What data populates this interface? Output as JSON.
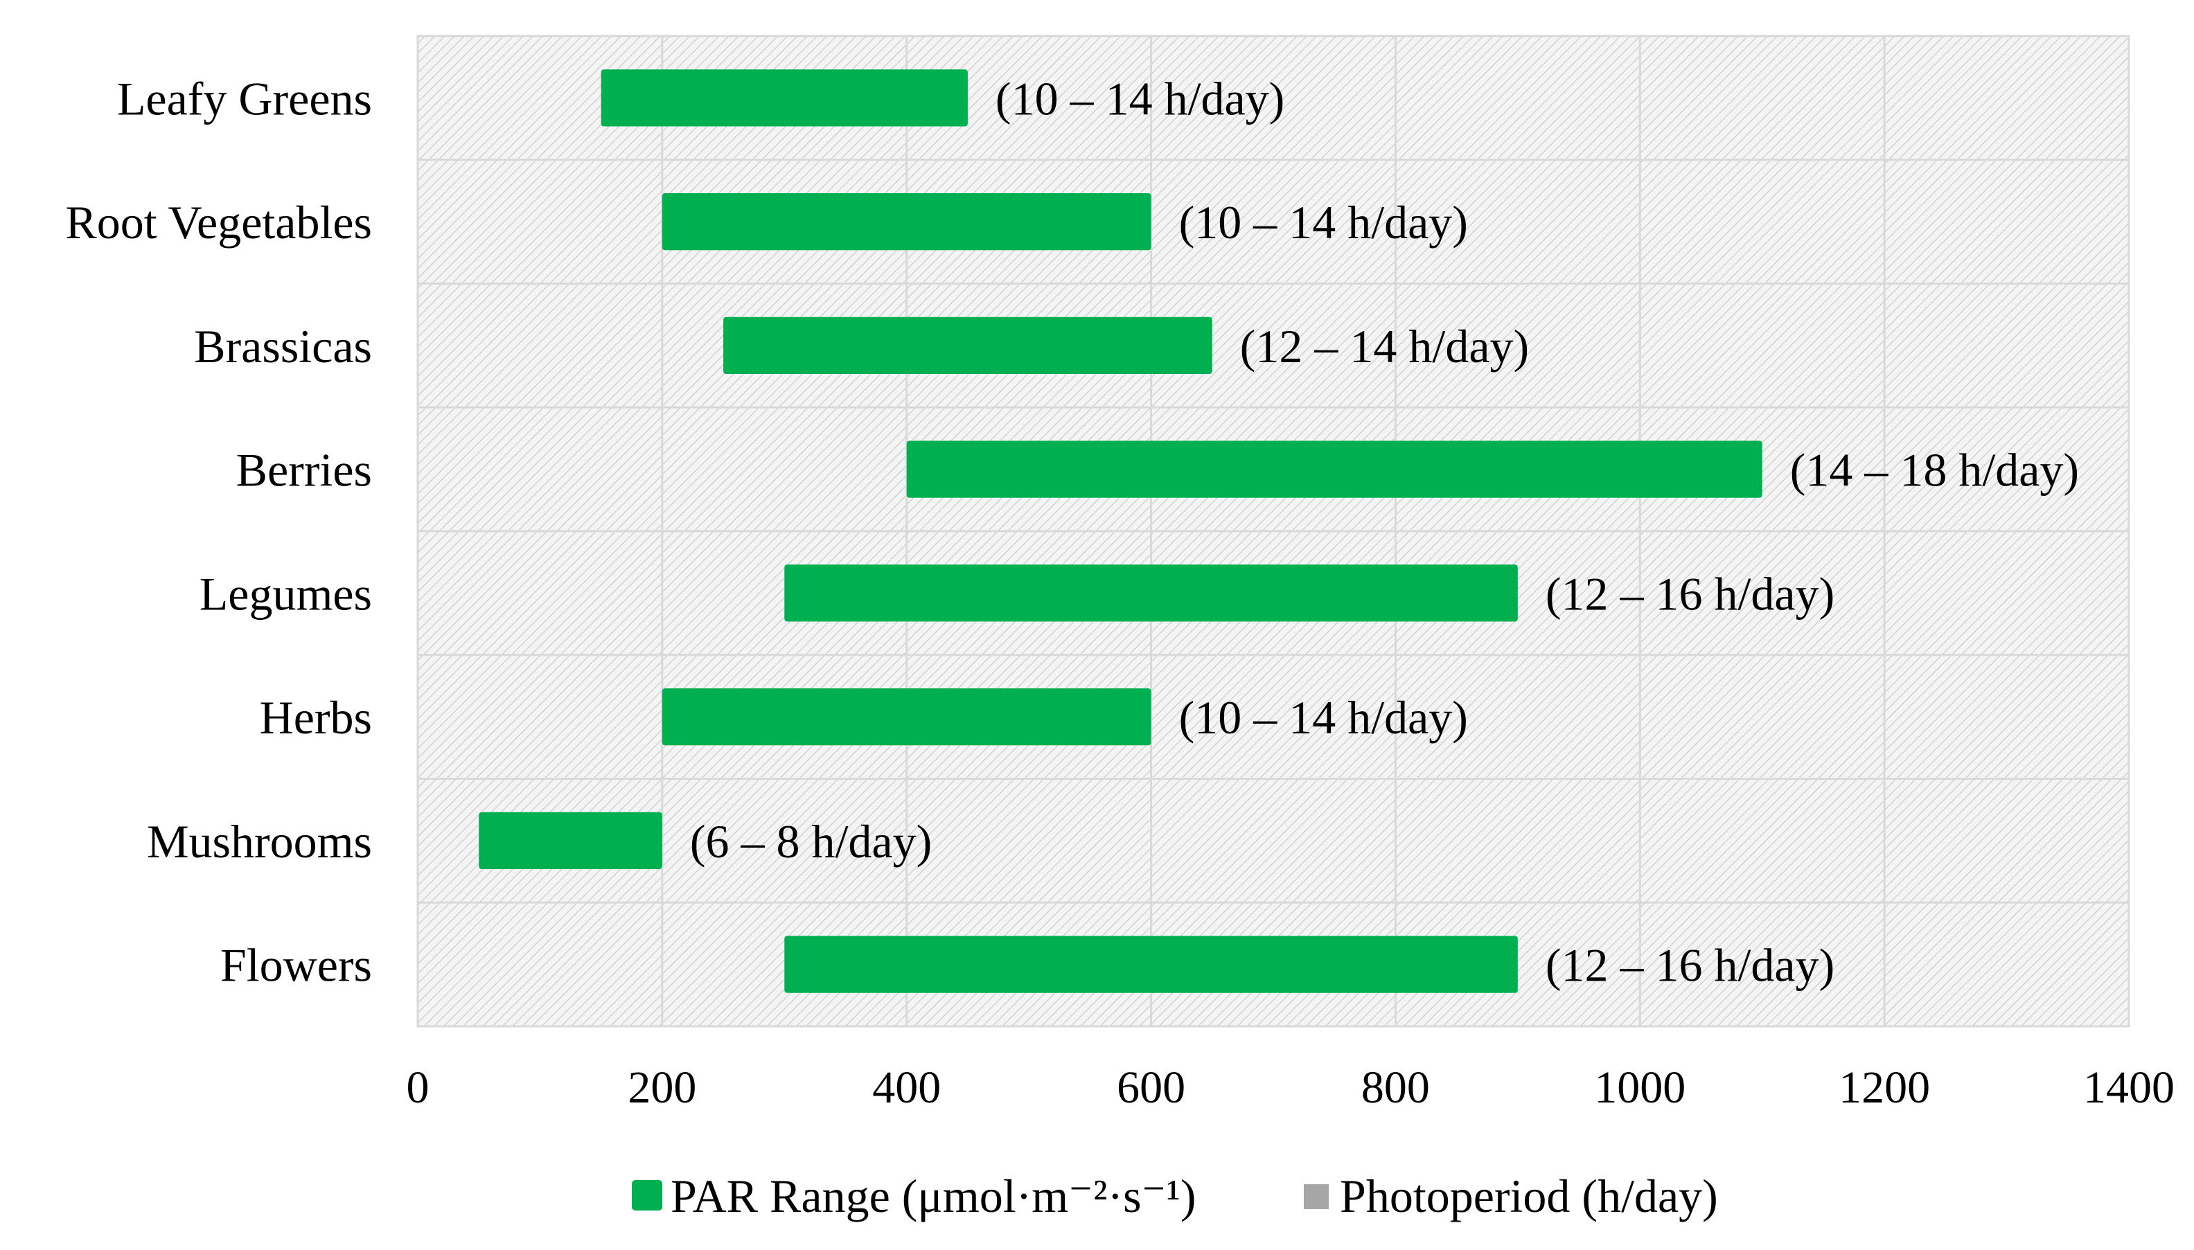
{
  "chart_data": {
    "type": "bar",
    "orientation": "horizontal",
    "stacked_range": true,
    "categories": [
      "Leafy Greens",
      "Root Vegetables",
      "Brassicas",
      "Berries",
      "Legumes",
      "Herbs",
      "Mushrooms",
      "Flowers"
    ],
    "series": [
      {
        "name": "PAR Range (μmol·m⁻²·s⁻¹)",
        "color": "#00b050",
        "start": [
          150,
          200,
          250,
          400,
          300,
          200,
          50,
          300
        ],
        "end": [
          450,
          600,
          650,
          1100,
          900,
          600,
          200,
          900
        ]
      },
      {
        "name": "Photoperiod (h/day)",
        "color": "#a6a6a6",
        "labels": [
          "(10 – 14 h/day)",
          "(10 – 14 h/day)",
          "(12 – 14 h/day)",
          "(14 – 18 h/day)",
          "(12 – 16 h/day)",
          "(10 – 14 h/day)",
          "(6 – 8 h/day)",
          "(12 – 16 h/day)"
        ]
      }
    ],
    "xlim": [
      0,
      1400
    ],
    "xticks": [
      0,
      200,
      400,
      600,
      800,
      1000,
      1200,
      1400
    ],
    "xtick_labels": [
      "0",
      "200",
      "400",
      "600",
      "800",
      "1000",
      "1200",
      "1400"
    ],
    "grid": true,
    "plot_background": "hatched light gray",
    "legend_position": "bottom"
  }
}
